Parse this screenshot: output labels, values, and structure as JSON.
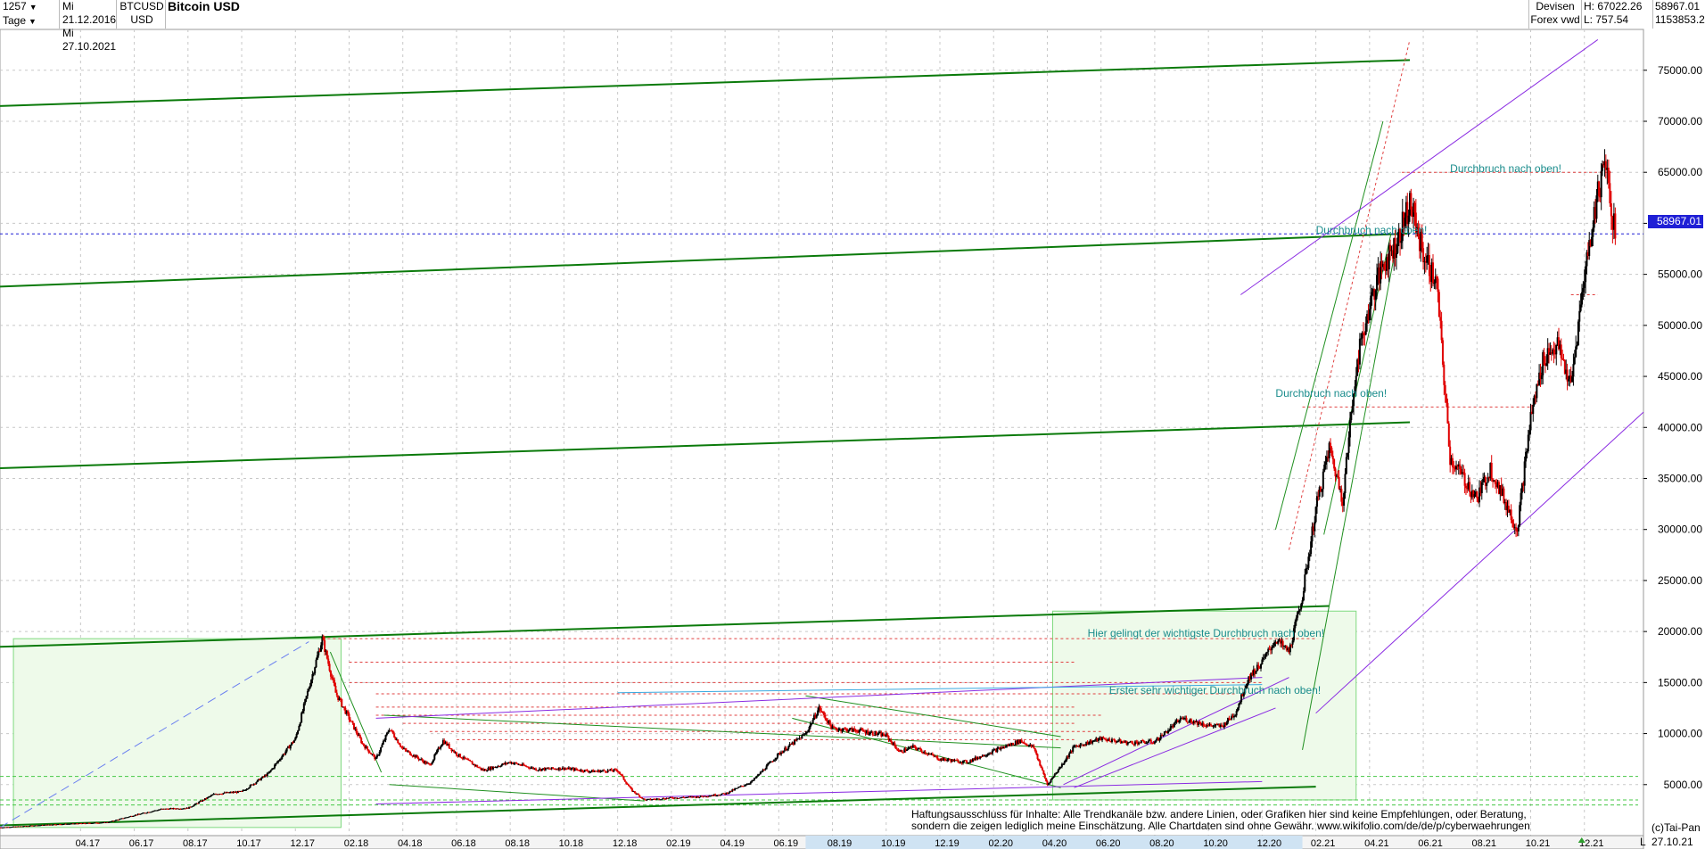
{
  "header": {
    "count_value": "1257",
    "period_value": "Tage",
    "date_from": "Mi 21.12.2016",
    "date_to": "Mi 27.10.2021",
    "symbol": "BTCUSD",
    "currency": "USD",
    "title": "Bitcoin USD",
    "market": "Devisen",
    "source": "Forex vwd",
    "high_label": "H: 67022.26",
    "low_label": "L: 757.54",
    "last_value": "58967.01",
    "volume_value": "1153853.2"
  },
  "price_flag": "58967.01",
  "footer": {
    "disclaimer_line1": "Haftungsausschluss für Inhalte: Alle Trendkanäle bzw. andere Linien, oder Grafiken hier sind keine Empfehlungen, oder Beratung,",
    "disclaimer_line2": "sondern die zeigen lediglich meine  Einschätzung. Alle Chartdaten sind ohne Gewähr.  www.wikifolio.com/de/de/p/cyberwaehrungen",
    "copyright": "(c)Tai-Pan",
    "last_date": "27.10.21",
    "axis_marker": "L"
  },
  "colors": {
    "candle_up": "#000000",
    "candle_down": "#e00000",
    "trend_green": "#0a7a0a",
    "channel_purple": "#8a2be2",
    "last_price_line": "#1f1fd6",
    "annotation_text": "#1a8c8c",
    "zone_fill": "#eefaea"
  },
  "chart_data": {
    "type": "candlestick",
    "title": "Bitcoin USD",
    "ylim": [
      0,
      79000
    ],
    "yticks": [
      "5000.00",
      "10000.00",
      "15000.00",
      "20000.00",
      "25000.00",
      "30000.00",
      "35000.00",
      "40000.00",
      "45000.00",
      "50000.00",
      "55000.00",
      "60000.00",
      "65000.00",
      "70000.00",
      "75000.00"
    ],
    "ytick_values": [
      5000,
      10000,
      15000,
      20000,
      25000,
      30000,
      35000,
      40000,
      45000,
      50000,
      55000,
      60000,
      65000,
      70000,
      75000
    ],
    "xticks": [
      "04.17",
      "06.17",
      "08.17",
      "10.17",
      "12.17",
      "02.18",
      "04.18",
      "06.18",
      "08.18",
      "10.18",
      "12.18",
      "02.19",
      "04.19",
      "06.19",
      "08.19",
      "10.19",
      "12.19",
      "02.20",
      "04.20",
      "06.20",
      "08.20",
      "10.20",
      "12.20",
      "02.21",
      "04.21",
      "06.21",
      "08.21",
      "10.21",
      "12.21"
    ],
    "xtick_months": [
      4,
      6,
      8,
      10,
      12,
      14,
      16,
      18,
      20,
      22,
      24,
      26,
      28,
      30,
      32,
      34,
      36,
      38,
      40,
      42,
      44,
      46,
      48,
      50,
      52,
      54,
      56,
      58,
      60
    ],
    "grid": true,
    "last_price": 58967.01,
    "close_series": {
      "name": "BTCUSD",
      "points": [
        [
          0,
          800
        ],
        [
          1,
          950
        ],
        [
          2,
          1100
        ],
        [
          3,
          1200
        ],
        [
          4,
          1300
        ],
        [
          5,
          2000
        ],
        [
          6,
          2600
        ],
        [
          7,
          2700
        ],
        [
          8,
          4100
        ],
        [
          9,
          4300
        ],
        [
          10,
          6100
        ],
        [
          11,
          9500
        ],
        [
          11.5,
          14500
        ],
        [
          12,
          19300
        ],
        [
          12.5,
          14000
        ],
        [
          13,
          11500
        ],
        [
          13.5,
          9000
        ],
        [
          14,
          7500
        ],
        [
          14.5,
          10500
        ],
        [
          15,
          8500
        ],
        [
          16,
          6900
        ],
        [
          16.5,
          9300
        ],
        [
          17,
          8000
        ],
        [
          18,
          6400
        ],
        [
          19,
          7200
        ],
        [
          20,
          6500
        ],
        [
          21,
          6600
        ],
        [
          22,
          6300
        ],
        [
          23,
          6400
        ],
        [
          23.5,
          4500
        ],
        [
          24,
          3500
        ],
        [
          25,
          3700
        ],
        [
          26,
          3800
        ],
        [
          27,
          4100
        ],
        [
          28,
          5300
        ],
        [
          29,
          8000
        ],
        [
          30,
          10000
        ],
        [
          30.5,
          12500
        ],
        [
          31,
          10500
        ],
        [
          32,
          10300
        ],
        [
          33,
          9800
        ],
        [
          33.5,
          8200
        ],
        [
          34,
          8700
        ],
        [
          35,
          7500
        ],
        [
          36,
          7200
        ],
        [
          37,
          8300
        ],
        [
          38,
          9300
        ],
        [
          38.5,
          8600
        ],
        [
          39,
          5000
        ],
        [
          39.5,
          6800
        ],
        [
          40,
          8700
        ],
        [
          41,
          9500
        ],
        [
          42,
          9100
        ],
        [
          43,
          9200
        ],
        [
          44,
          11500
        ],
        [
          45,
          10800
        ],
        [
          45.5,
          10700
        ],
        [
          46,
          12000
        ],
        [
          46.5,
          15500
        ],
        [
          47,
          17000
        ],
        [
          47.5,
          19200
        ],
        [
          48,
          18000
        ],
        [
          48.5,
          23500
        ],
        [
          49,
          32000
        ],
        [
          49.5,
          38000
        ],
        [
          50,
          33000
        ],
        [
          50.5,
          46000
        ],
        [
          51,
          52000
        ],
        [
          51.5,
          56000
        ],
        [
          52,
          58000
        ],
        [
          52.5,
          62000
        ],
        [
          53,
          57000
        ],
        [
          53.5,
          54000
        ],
        [
          54,
          37000
        ],
        [
          54.5,
          35000
        ],
        [
          55,
          33000
        ],
        [
          55.5,
          36000
        ],
        [
          56,
          33000
        ],
        [
          56.5,
          30000
        ],
        [
          57,
          41000
        ],
        [
          57.5,
          47000
        ],
        [
          58,
          48000
        ],
        [
          58.5,
          44000
        ],
        [
          59,
          55000
        ],
        [
          59.5,
          63000
        ],
        [
          59.8,
          66500
        ],
        [
          60,
          61000
        ],
        [
          60.2,
          58967
        ]
      ]
    },
    "annotations": [
      {
        "text": "Durchbruch nach oben!",
        "x": 54,
        "y": 65000
      },
      {
        "text": "Durchbruch nach oben!",
        "x": 49,
        "y": 59000
      },
      {
        "text": "Durchbruch nach oben!",
        "x": 47.5,
        "y": 43000
      },
      {
        "text": "Hier gelingt der wichtigste Durchbruch nach oben!",
        "x": 40.5,
        "y": 19500
      },
      {
        "text": "Erster sehr wichtiger Durchbruch nach oben!",
        "x": 41.3,
        "y": 13900
      }
    ]
  }
}
